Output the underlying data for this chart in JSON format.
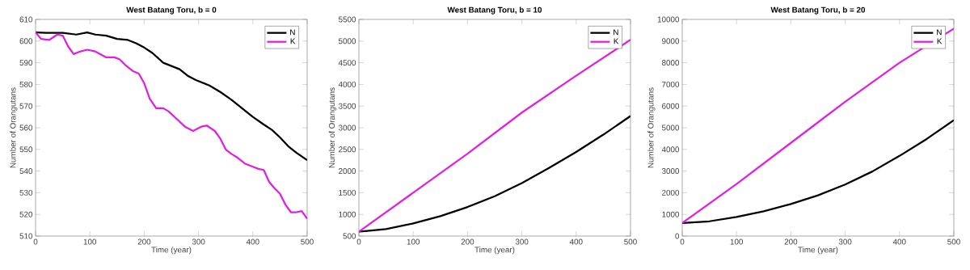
{
  "chart_data": [
    {
      "type": "line",
      "title": "West Batang Toru, b = 0",
      "xlabel": "Time (year)",
      "ylabel": "Number of Orangutans",
      "xlim": [
        0,
        500
      ],
      "ylim": [
        510,
        610
      ],
      "xticks": [
        0,
        100,
        200,
        300,
        400,
        500
      ],
      "yticks": [
        510,
        520,
        530,
        540,
        550,
        560,
        570,
        580,
        590,
        600,
        610
      ],
      "legend": "top right",
      "line_style": "solid",
      "series": [
        {
          "name": "N",
          "color": "#000000",
          "x": [
            0,
            20,
            50,
            75,
            95,
            110,
            130,
            150,
            170,
            185,
            200,
            215,
            235,
            245,
            265,
            280,
            295,
            320,
            340,
            360,
            380,
            400,
            420,
            435,
            450,
            465,
            480,
            500
          ],
          "values": [
            604,
            603.8,
            603.8,
            603,
            604,
            603,
            602.5,
            601,
            600.5,
            599,
            597,
            594.5,
            590,
            589,
            587,
            584,
            582,
            579.5,
            576.5,
            573,
            569,
            565,
            561.5,
            559,
            555.5,
            551.5,
            548.5,
            545
          ]
        },
        {
          "name": "K",
          "color": "#e020e0",
          "x": [
            0,
            10,
            25,
            40,
            50,
            60,
            70,
            80,
            95,
            110,
            130,
            145,
            155,
            165,
            180,
            190,
            200,
            210,
            222,
            235,
            245,
            260,
            275,
            290,
            305,
            315,
            330,
            340,
            350,
            360,
            370,
            385,
            400,
            410,
            420,
            430,
            440,
            450,
            460,
            470,
            480,
            490,
            500
          ],
          "values": [
            604,
            601,
            600.5,
            603,
            602.5,
            597.5,
            594,
            595,
            596,
            595.2,
            592.5,
            592.5,
            591.5,
            589,
            586,
            585,
            580.5,
            573.5,
            569,
            569,
            567.5,
            564,
            560.5,
            558.5,
            560.5,
            561,
            558.5,
            555,
            550,
            548,
            546.5,
            543.5,
            542,
            541,
            540.5,
            535,
            532,
            529.5,
            524.5,
            521,
            521,
            521.5,
            518
          ]
        }
      ]
    },
    {
      "type": "line",
      "title": "West Batang Toru, b = 10",
      "xlabel": "Time (year)",
      "ylabel": "Number of Orangutans",
      "xlim": [
        0,
        500
      ],
      "ylim": [
        500,
        5500
      ],
      "xticks": [
        0,
        100,
        200,
        300,
        400,
        500
      ],
      "yticks": [
        500,
        1000,
        1500,
        2000,
        2500,
        3000,
        3500,
        4000,
        4500,
        5000,
        5500
      ],
      "legend": "top right",
      "line_style": "solid",
      "series": [
        {
          "name": "N",
          "color": "#000000",
          "x": [
            0,
            50,
            100,
            150,
            200,
            250,
            300,
            350,
            400,
            450,
            500
          ],
          "values": [
            600,
            660,
            790,
            960,
            1170,
            1420,
            1720,
            2070,
            2440,
            2840,
            3270
          ]
        },
        {
          "name": "K",
          "color": "#e020e0",
          "x": [
            0,
            100,
            200,
            300,
            400,
            500
          ],
          "values": [
            600,
            1500,
            2400,
            3350,
            4200,
            5030
          ]
        }
      ]
    },
    {
      "type": "line",
      "title": "West Batang Toru, b = 20",
      "xlabel": "Time (year)",
      "ylabel": "Number of Orangutans",
      "xlim": [
        0,
        500
      ],
      "ylim": [
        0,
        10000
      ],
      "xticks": [
        0,
        100,
        200,
        300,
        400,
        500
      ],
      "yticks": [
        0,
        1000,
        2000,
        3000,
        4000,
        5000,
        6000,
        7000,
        8000,
        9000,
        10000
      ],
      "legend": "top right",
      "line_style": "solid",
      "series": [
        {
          "name": "N",
          "color": "#000000",
          "x": [
            0,
            50,
            100,
            150,
            200,
            250,
            300,
            350,
            400,
            450,
            500
          ],
          "values": [
            600,
            680,
            880,
            1140,
            1480,
            1880,
            2380,
            2980,
            3700,
            4480,
            5350
          ]
        },
        {
          "name": "K",
          "color": "#e020e0",
          "x": [
            0,
            100,
            200,
            300,
            400,
            500
          ],
          "values": [
            600,
            2400,
            4300,
            6200,
            8000,
            9570
          ]
        }
      ]
    }
  ]
}
